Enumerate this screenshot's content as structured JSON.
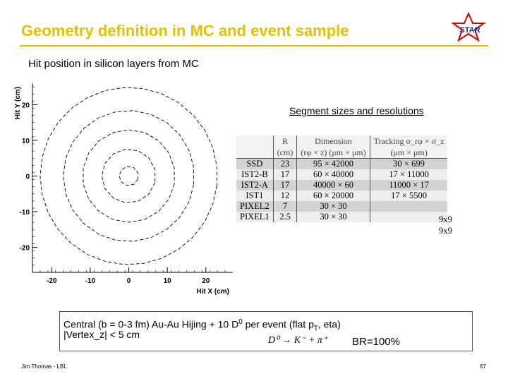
{
  "slide": {
    "title": "Geometry definition in MC and event sample",
    "subtitle": "Hit position in silicon layers from MC",
    "logo_text": "STAR",
    "accent_color": "#e5c000"
  },
  "chart_data": {
    "type": "scatter",
    "title": "",
    "xlabel": "Hit X (cm)",
    "ylabel": "Hit Y (cm)",
    "xlim": [
      -25,
      27
    ],
    "ylim": [
      -27,
      26
    ],
    "x_ticks": [
      -20,
      -10,
      0,
      10,
      20
    ],
    "y_ticks": [
      -20,
      -10,
      0,
      10,
      20
    ],
    "series": [
      {
        "values": [
          {
            "r": 2.5
          }
        ]
      },
      {
        "values": [
          {
            "r": 7
          }
        ]
      },
      {
        "values": [
          {
            "r": 12
          }
        ]
      },
      {
        "values": [
          {
            "r": 17
          }
        ]
      },
      {
        "values": [
          {
            "r": 23
          }
        ]
      }
    ]
  },
  "table": {
    "heading": "Segment sizes and resolutions",
    "header1": [
      "",
      "R",
      "Dimension",
      "Tracking σ_rφ × σ_z"
    ],
    "header2": [
      "",
      "(cm)",
      "(rφ × z) (μm × μm)",
      "(μm × μm)"
    ],
    "rows": [
      [
        "SSD",
        "23",
        "95 × 42000",
        "30 × 699"
      ],
      [
        "IST2-B",
        "17",
        "60 × 40000",
        "17 × 11000"
      ],
      [
        "IST2-A",
        "17",
        "40000 × 60",
        "11000 × 17"
      ],
      [
        "IST1",
        "12",
        "60 × 20000",
        "17 × 5500"
      ],
      [
        "PIXEL2",
        "7",
        "30 × 30",
        ""
      ],
      [
        "PIXEL1",
        "2.5",
        "30 × 30",
        ""
      ]
    ],
    "extra_pixel2": "9x9",
    "extra_pixel1": "9x9"
  },
  "event": {
    "line1_prefix": "Central (b = 0-3 fm)  Au-Au Hijing  + 10 D",
    "line1_sup": "0",
    "line1_mid": " per event (flat p",
    "line1_sub": "T",
    "line1_suffix": ", eta)",
    "line2": "|Vertex_z|  <  5 cm",
    "decay": "D⁰ → K⁻ + π⁺",
    "br": "BR=100%"
  },
  "footer": {
    "author": "Jim Thomas - LBL",
    "page": "67"
  }
}
